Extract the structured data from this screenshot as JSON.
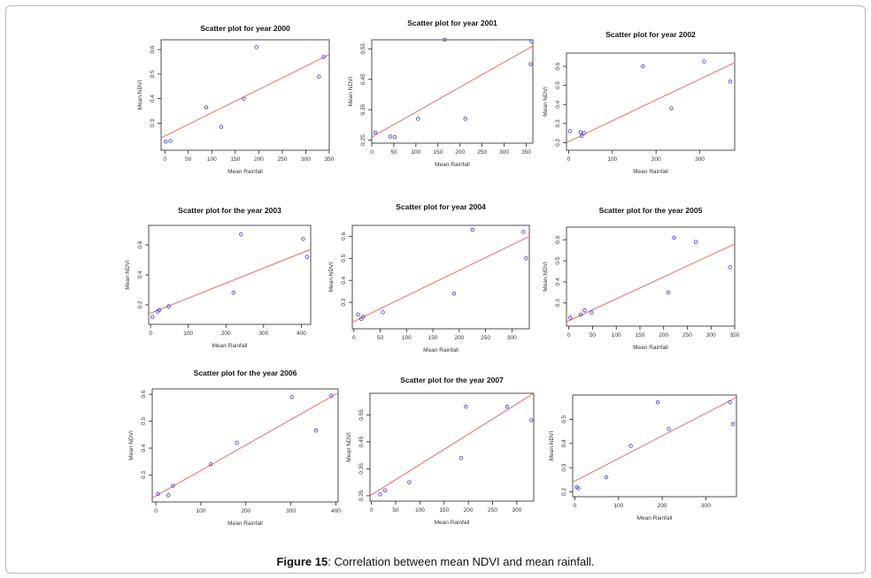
{
  "figure": {
    "caption_label": "Figure 15",
    "caption_text": ": Correlation between mean NDVI and mean rainfall."
  },
  "colors": {
    "points": "#3b3bdc",
    "fit_line": "#e8706a",
    "axis": "#222222"
  },
  "chart_data": [
    {
      "type": "scatter",
      "title": "Scatter plot for year 2000",
      "xlabel": "Mean Rainfall",
      "ylabel": "Mean NDVI",
      "xlim": [
        -8,
        350
      ],
      "ylim": [
        0.19,
        0.64
      ],
      "xticks": [
        0,
        50,
        100,
        150,
        200,
        250,
        300,
        350
      ],
      "yticks": [
        0.3,
        0.4,
        0.5,
        0.6
      ],
      "x": [
        2,
        12,
        88,
        120,
        168,
        195,
        328,
        338
      ],
      "y": [
        0.225,
        0.228,
        0.365,
        0.285,
        0.4,
        0.61,
        0.49,
        0.57
      ],
      "fit": [
        [
          -8,
          0.24
        ],
        [
          350,
          0.58
        ]
      ]
    },
    {
      "type": "scatter",
      "title": "Scatter plot for year 2001",
      "xlabel": "Mean Rainfall",
      "ylabel": "Mean NDVI",
      "xlim": [
        0,
        365
      ],
      "ylim": [
        0.24,
        0.58
      ],
      "xticks": [
        0,
        50,
        100,
        150,
        200,
        250,
        300,
        350
      ],
      "yticks": [
        0.25,
        0.35,
        0.45,
        0.55
      ],
      "x": [
        8,
        42,
        52,
        105,
        165,
        212,
        360,
        362
      ],
      "y": [
        0.275,
        0.262,
        0.26,
        0.32,
        0.58,
        0.32,
        0.5,
        0.575
      ],
      "fit": [
        [
          0,
          0.26
        ],
        [
          365,
          0.56
        ]
      ]
    },
    {
      "type": "scatter",
      "title": "Scatter plot for year 2002",
      "xlabel": "Mean Rainfall",
      "ylabel": "Mean NDVI",
      "xlim": [
        -5,
        380
      ],
      "ylim": [
        0.16,
        0.67
      ],
      "xticks": [
        0,
        100,
        200,
        300
      ],
      "yticks": [
        0.2,
        0.3,
        0.4,
        0.5,
        0.6
      ],
      "x": [
        3,
        27,
        30,
        35,
        170,
        235,
        310,
        370
      ],
      "y": [
        0.26,
        0.255,
        0.235,
        0.25,
        0.6,
        0.38,
        0.625,
        0.52
      ],
      "fit": [
        [
          -5,
          0.2
        ],
        [
          380,
          0.62
        ]
      ]
    },
    {
      "type": "scatter",
      "title": "Scatter plot for the year 2003",
      "xlabel": "Mean Rainfall",
      "ylabel": "Mean NDVI",
      "xlim": [
        -5,
        425
      ],
      "ylim": [
        0.07,
        0.73
      ],
      "xticks": [
        0,
        100,
        200,
        300,
        400
      ],
      "yticks": [
        0.2,
        0.4,
        0.6
      ],
      "x": [
        5,
        18,
        23,
        48,
        220,
        240,
        405,
        415
      ],
      "y": [
        0.12,
        0.155,
        0.165,
        0.19,
        0.28,
        0.67,
        0.64,
        0.52
      ],
      "fit": [
        [
          -5,
          0.14
        ],
        [
          425,
          0.57
        ]
      ]
    },
    {
      "type": "scatter",
      "title": "Scatter plot for year 2004",
      "xlabel": "Mean Rainfall",
      "ylabel": "Mean NDVI",
      "xlim": [
        -3,
        333
      ],
      "ylim": [
        0.18,
        0.65
      ],
      "xticks": [
        0,
        50,
        100,
        150,
        200,
        250,
        300
      ],
      "yticks": [
        0.3,
        0.4,
        0.5,
        0.6
      ],
      "x": [
        8,
        14,
        18,
        55,
        190,
        225,
        322,
        327
      ],
      "y": [
        0.245,
        0.225,
        0.235,
        0.255,
        0.34,
        0.63,
        0.62,
        0.5
      ],
      "fit": [
        [
          -3,
          0.21
        ],
        [
          333,
          0.6
        ]
      ]
    },
    {
      "type": "scatter",
      "title": "Scatter plot for the year 2005",
      "xlabel": "Mean Rainfall",
      "ylabel": "Mean NDVI",
      "xlim": [
        -5,
        350
      ],
      "ylim": [
        0.19,
        0.66
      ],
      "xticks": [
        0,
        50,
        100,
        150,
        200,
        250,
        300,
        350
      ],
      "yticks": [
        0.3,
        0.4,
        0.5,
        0.6
      ],
      "x": [
        3,
        25,
        33,
        48,
        210,
        222,
        268,
        340
      ],
      "y": [
        0.23,
        0.245,
        0.265,
        0.255,
        0.35,
        0.61,
        0.59,
        0.47
      ],
      "fit": [
        [
          -5,
          0.21
        ],
        [
          350,
          0.58
        ]
      ]
    },
    {
      "type": "scatter",
      "title": "Scatter plot for the year 2006",
      "xlabel": "Mean Rainfall",
      "ylabel": "Mean NDVI",
      "xlim": [
        -8,
        405
      ],
      "ylim": [
        0.2,
        0.62
      ],
      "xticks": [
        0,
        100,
        200,
        300,
        400
      ],
      "yticks": [
        0.3,
        0.4,
        0.5,
        0.6
      ],
      "x": [
        5,
        28,
        38,
        122,
        180,
        302,
        356,
        390
      ],
      "y": [
        0.23,
        0.225,
        0.26,
        0.34,
        0.42,
        0.59,
        0.465,
        0.595
      ],
      "fit": [
        [
          -8,
          0.215
        ],
        [
          405,
          0.605
        ]
      ]
    },
    {
      "type": "scatter",
      "title": "Scatter plot for the year 2007",
      "xlabel": "Mean Rainfall",
      "ylabel": "Mean NDVI",
      "xlim": [
        -3,
        335
      ],
      "ylim": [
        0.23,
        0.63
      ],
      "xticks": [
        0,
        50,
        100,
        150,
        200,
        250,
        300
      ],
      "yticks": [
        0.25,
        0.35,
        0.45,
        0.55
      ],
      "x": [
        18,
        28,
        78,
        185,
        195,
        280,
        330
      ],
      "y": [
        0.255,
        0.27,
        0.3,
        0.39,
        0.58,
        0.58,
        0.53
      ],
      "fit": [
        [
          -3,
          0.25
        ],
        [
          335,
          0.63
        ]
      ]
    },
    {
      "type": "scatter",
      "title": "",
      "xlabel": "Mean Rainfall",
      "ylabel": "Mean NDVI",
      "xlim": [
        -5,
        370
      ],
      "ylim": [
        0.18,
        0.6
      ],
      "xticks": [
        0,
        100,
        200,
        300
      ],
      "yticks": [
        0.2,
        0.3,
        0.4,
        0.5
      ],
      "x": [
        4,
        8,
        72,
        128,
        190,
        215,
        355,
        362
      ],
      "y": [
        0.22,
        0.215,
        0.26,
        0.39,
        0.57,
        0.46,
        0.57,
        0.48
      ],
      "fit": [
        [
          -5,
          0.24
        ],
        [
          370,
          0.59
        ]
      ]
    }
  ]
}
